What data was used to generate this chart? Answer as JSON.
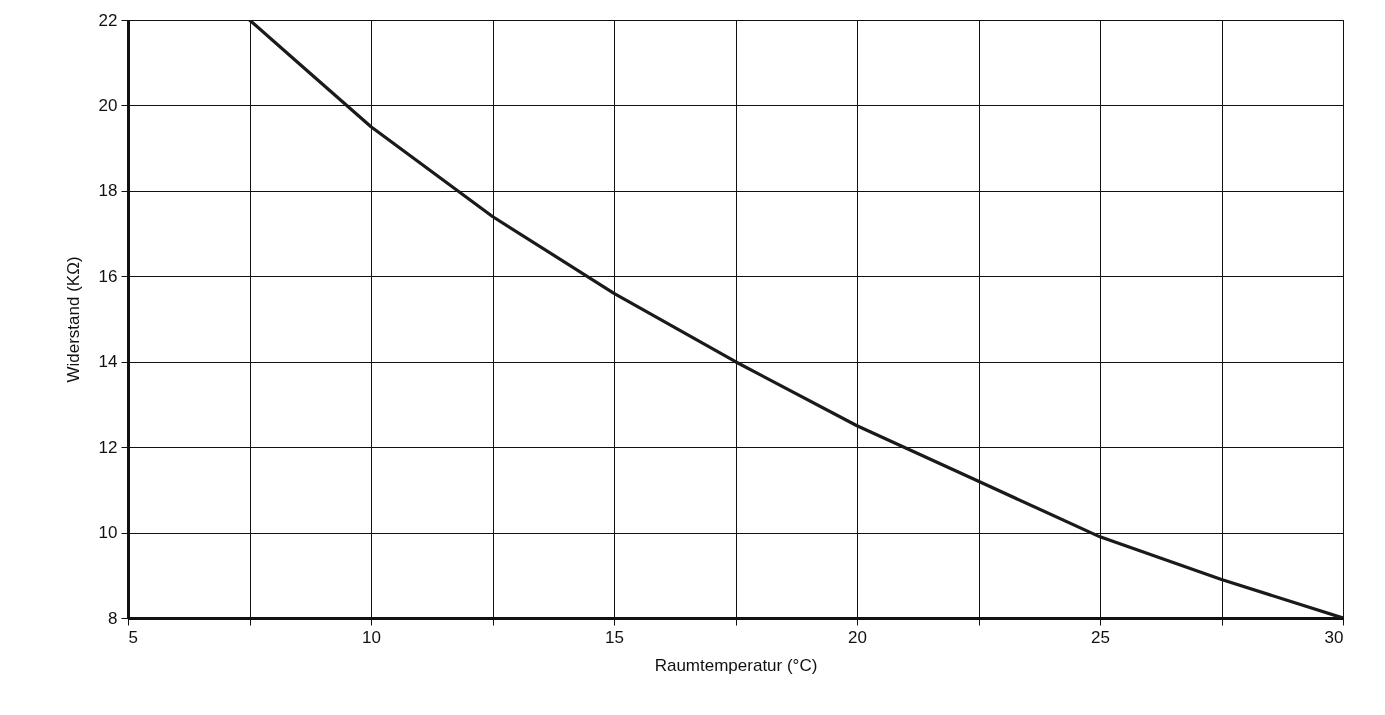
{
  "chart_data": {
    "type": "line",
    "xlabel": "Raumtemperatur (°C)",
    "ylabel": "Widerstand (KΩ)",
    "x": [
      7.5,
      8.5,
      10,
      12.5,
      15,
      17.5,
      20,
      22.5,
      25,
      27.5,
      30
    ],
    "series": [
      {
        "color": "#1a1a1a",
        "values": [
          22,
          21,
          19.5,
          17.4,
          15.6,
          14,
          12.5,
          11.2,
          9.9,
          8.9,
          8
        ]
      }
    ],
    "xlim": [
      5,
      30
    ],
    "ylim": [
      8,
      22
    ],
    "xticks": [
      5,
      {
        "value": 7.5,
        "label": null
      },
      10,
      {
        "value": 12.5,
        "label": null
      },
      15,
      {
        "value": 17.5,
        "label": null
      },
      20,
      {
        "value": 22.5,
        "label": null
      },
      25,
      {
        "value": 27.5,
        "label": null
      },
      30
    ],
    "yticks": [
      8,
      10,
      12,
      14,
      16,
      18,
      20,
      22
    ],
    "grid": true,
    "marker": "none",
    "line_style": "solid"
  }
}
